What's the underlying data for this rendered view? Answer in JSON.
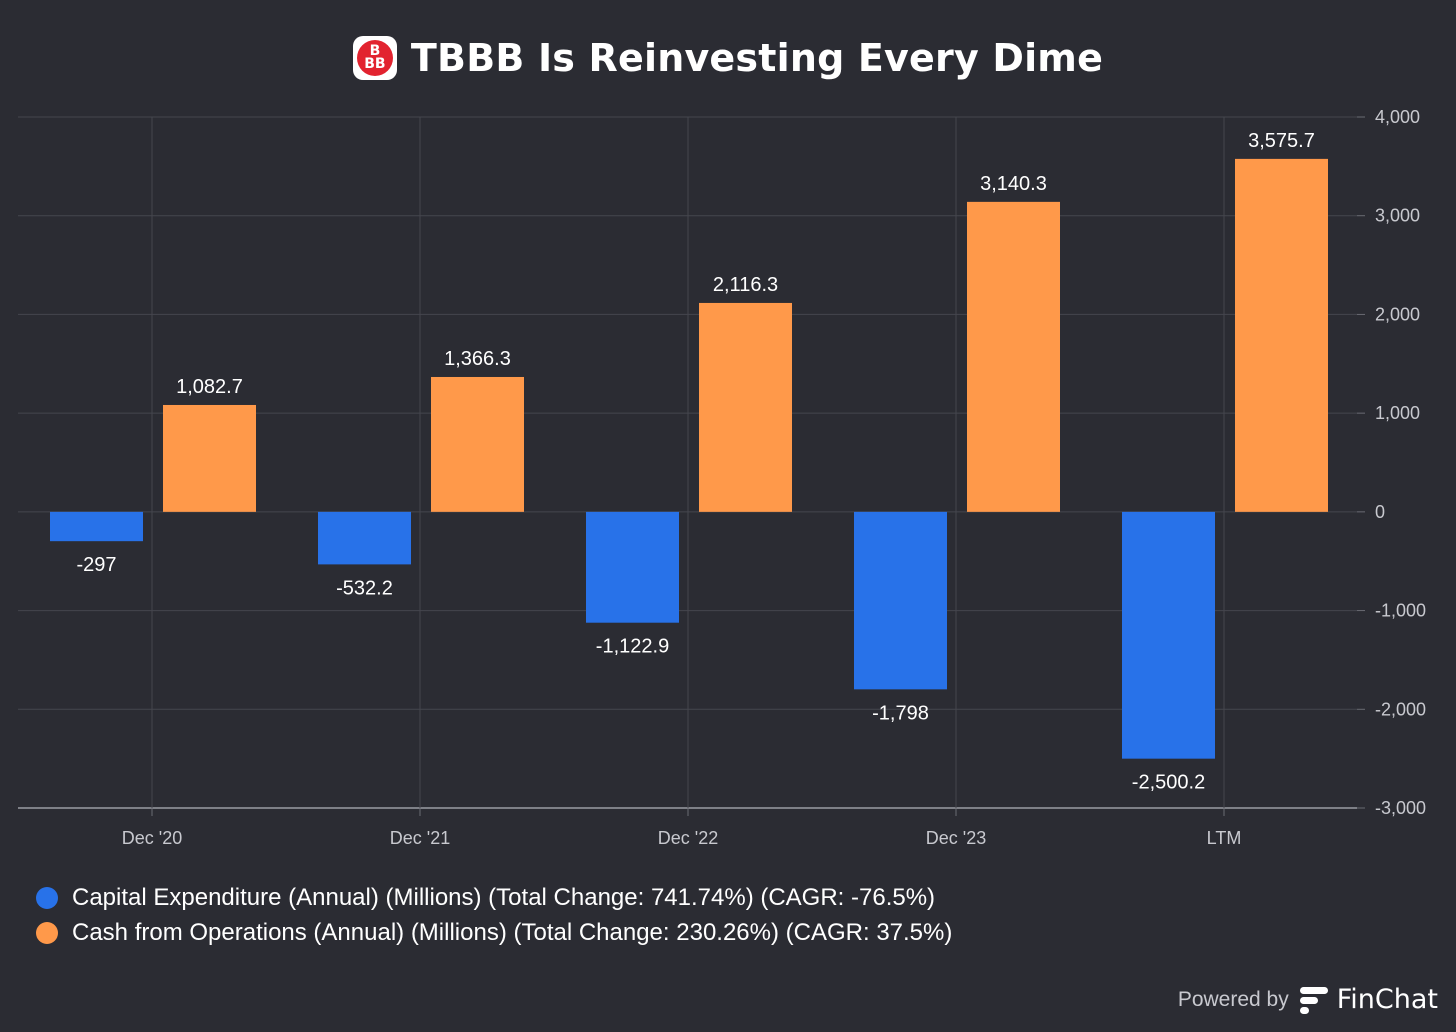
{
  "title": "TBBB Is Reinvesting Every Dime",
  "logo_text": [
    "B",
    "BB"
  ],
  "chart_data": {
    "type": "bar",
    "title": "TBBB Is Reinvesting Every Dime",
    "categories": [
      "Dec '20",
      "Dec '21",
      "Dec '22",
      "Dec '23",
      "LTM"
    ],
    "series": [
      {
        "name": "Capital Expenditure (Annual) (Millions) (Total Change: 741.74%) (CAGR: -76.5%)",
        "color": "#2872e9",
        "values": [
          -297,
          -532.2,
          -1122.9,
          -1798,
          -2500.2
        ],
        "labels": [
          "-297",
          "-532.2",
          "-1,122.9",
          "-1,798",
          "-2,500.2"
        ]
      },
      {
        "name": "Cash from Operations (Annual) (Millions) (Total Change: 230.26%) (CAGR: 37.5%)",
        "color": "#ff994a",
        "values": [
          1082.7,
          1366.3,
          2116.3,
          3140.3,
          3575.7
        ],
        "labels": [
          "1,082.7",
          "1,366.3",
          "2,116.3",
          "3,140.3",
          "3,575.7"
        ]
      }
    ],
    "y_ticks": [
      4000,
      3000,
      2000,
      1000,
      0,
      -1000,
      -2000,
      -3000
    ],
    "y_tick_labels": [
      "4,000",
      "3,000",
      "2,000",
      "1,000",
      "0",
      "-1,000",
      "-2,000",
      "-3,000"
    ],
    "ylim": [
      -3000,
      4000
    ],
    "y_axis_side": "right",
    "grid": true,
    "legend_position": "bottom-left"
  },
  "footer": {
    "powered_by": "Powered by",
    "brand": "FinChat"
  }
}
